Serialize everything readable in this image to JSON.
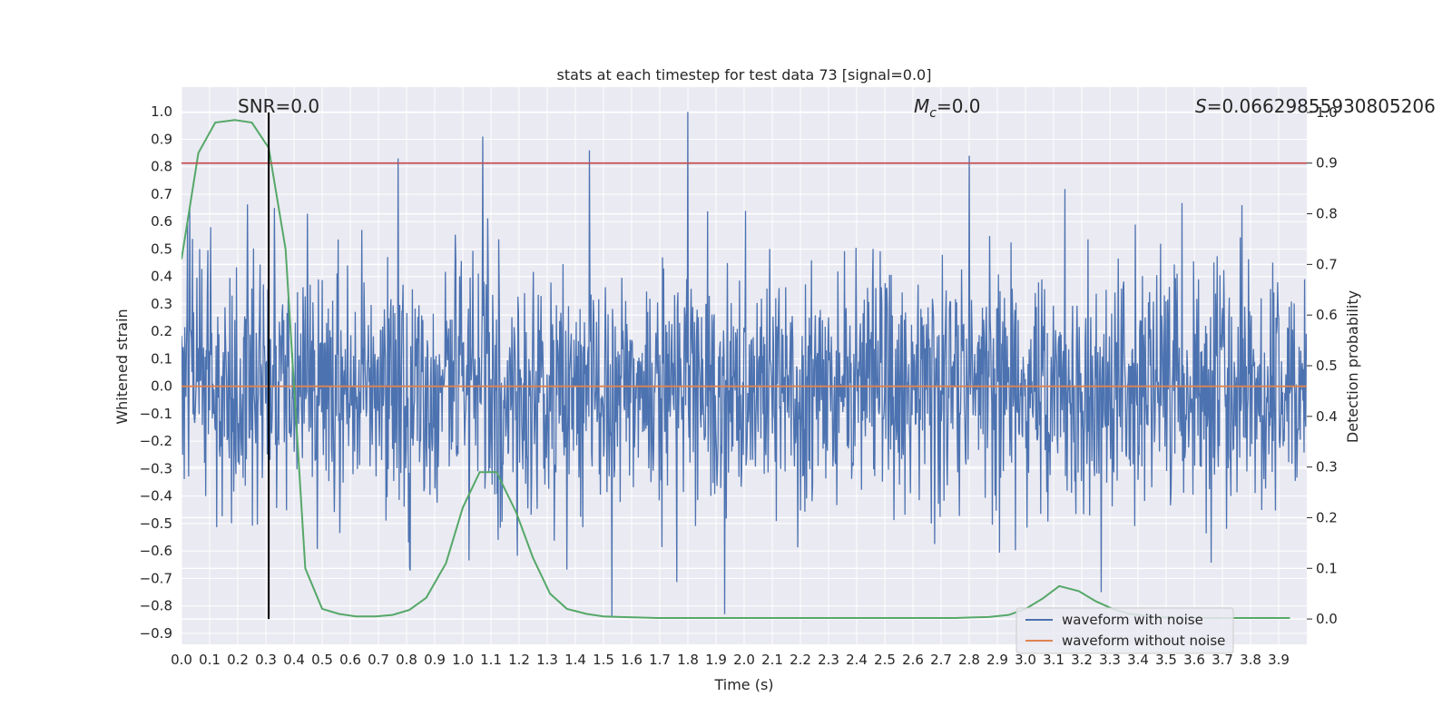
{
  "chart_data": {
    "type": "line",
    "title": "stats at each timestep for test data 73 [signal=0.0]",
    "xlabel": "Time (s)",
    "ylabel": "Whitened strain",
    "y2label": "Detection probability",
    "xlim": [
      0.0,
      4.0
    ],
    "ylim": [
      -0.94,
      1.09
    ],
    "y2lim": [
      -0.05,
      1.05
    ],
    "xticks": [
      "0.0",
      "0.1",
      "0.2",
      "0.3",
      "0.4",
      "0.5",
      "0.6",
      "0.7",
      "0.8",
      "0.9",
      "1.0",
      "1.1",
      "1.2",
      "1.3",
      "1.4",
      "1.5",
      "1.6",
      "1.7",
      "1.8",
      "1.9",
      "2.0",
      "2.1",
      "2.2",
      "2.3",
      "2.4",
      "2.5",
      "2.6",
      "2.7",
      "2.8",
      "2.9",
      "3.0",
      "3.1",
      "3.2",
      "3.3",
      "3.4",
      "3.5",
      "3.6",
      "3.7",
      "3.8",
      "3.9"
    ],
    "yticks": [
      "-0.9",
      "-0.8",
      "-0.7",
      "-0.6",
      "-0.5",
      "-0.4",
      "-0.3",
      "-0.2",
      "-0.1",
      "0.0",
      "0.1",
      "0.2",
      "0.3",
      "0.4",
      "0.5",
      "0.6",
      "0.7",
      "0.8",
      "0.9",
      "1.0"
    ],
    "y2ticks": [
      "0.0",
      "0.1",
      "0.2",
      "0.3",
      "0.4",
      "0.5",
      "0.6",
      "0.7",
      "0.8",
      "0.9",
      "1.0"
    ],
    "annotations": {
      "snr": "SNR=0.0",
      "mc_symbol": "M",
      "mc_sub": "c",
      "mc_value": "=0.0",
      "s_symbol": "S",
      "s_value": "=0.06629855930805206"
    },
    "legend": {
      "placement": "lower-right",
      "entries": [
        "waveform with noise",
        "waveform without noise"
      ]
    },
    "threshold": {
      "axis": "y2",
      "value": 0.9
    },
    "marker": {
      "x": 0.31
    },
    "series": [
      {
        "name": "waveform with noise",
        "axis": "y",
        "sampling": {
          "x_start": 0.0,
          "x_end": 4.0,
          "count": 2048,
          "seed": 73,
          "noise_std": 0.22
        },
        "peaks": [
          [
            0.03,
            0.65
          ],
          [
            0.77,
            0.83
          ],
          [
            0.81,
            -0.66
          ],
          [
            1.07,
            0.91
          ],
          [
            1.45,
            0.86
          ],
          [
            1.53,
            -0.84
          ],
          [
            1.8,
            1.0
          ],
          [
            1.93,
            -0.83
          ],
          [
            2.8,
            0.84
          ],
          [
            3.27,
            -0.75
          ],
          [
            3.77,
            0.66
          ]
        ]
      },
      {
        "name": "waveform without noise",
        "axis": "y",
        "x": [
          0.0,
          4.0
        ],
        "values": [
          0.0,
          0.0
        ]
      },
      {
        "axis": "y2",
        "x": [
          0.0,
          0.06,
          0.12,
          0.19,
          0.25,
          0.31,
          0.37,
          0.44,
          0.5,
          0.56,
          0.62,
          0.69,
          0.75,
          0.81,
          0.87,
          0.94,
          1.0,
          1.06,
          1.12,
          1.19,
          1.25,
          1.31,
          1.37,
          1.44,
          1.5,
          1.56,
          1.62,
          1.69,
          1.75,
          1.81,
          1.87,
          1.94,
          2.0,
          2.06,
          2.12,
          2.19,
          2.25,
          2.31,
          2.37,
          2.44,
          2.5,
          2.56,
          2.62,
          2.69,
          2.75,
          2.81,
          2.87,
          2.94,
          3.0,
          3.06,
          3.12,
          3.19,
          3.25,
          3.31,
          3.37,
          3.44,
          3.5,
          3.56,
          3.62,
          3.69,
          3.75,
          3.81,
          3.87,
          3.94
        ],
        "values": [
          0.71,
          0.92,
          0.98,
          0.985,
          0.98,
          0.93,
          0.73,
          0.1,
          0.02,
          0.01,
          0.005,
          0.005,
          0.008,
          0.018,
          0.042,
          0.11,
          0.22,
          0.29,
          0.29,
          0.21,
          0.12,
          0.05,
          0.02,
          0.01,
          0.005,
          0.004,
          0.003,
          0.002,
          0.002,
          0.002,
          0.002,
          0.002,
          0.002,
          0.002,
          0.002,
          0.002,
          0.002,
          0.002,
          0.002,
          0.002,
          0.002,
          0.002,
          0.002,
          0.002,
          0.002,
          0.003,
          0.004,
          0.008,
          0.02,
          0.04,
          0.065,
          0.055,
          0.035,
          0.02,
          0.01,
          0.005,
          0.003,
          0.002,
          0.002,
          0.002,
          0.002,
          0.002,
          0.002,
          0.002
        ]
      }
    ],
    "colors": {
      "background": "#eaeaf2",
      "grid": "#ffffff",
      "noise": "#4c72b0",
      "clean": "#dd8452",
      "probability": "#55a868",
      "threshold": "#c44e52",
      "marker": "#000000"
    }
  }
}
